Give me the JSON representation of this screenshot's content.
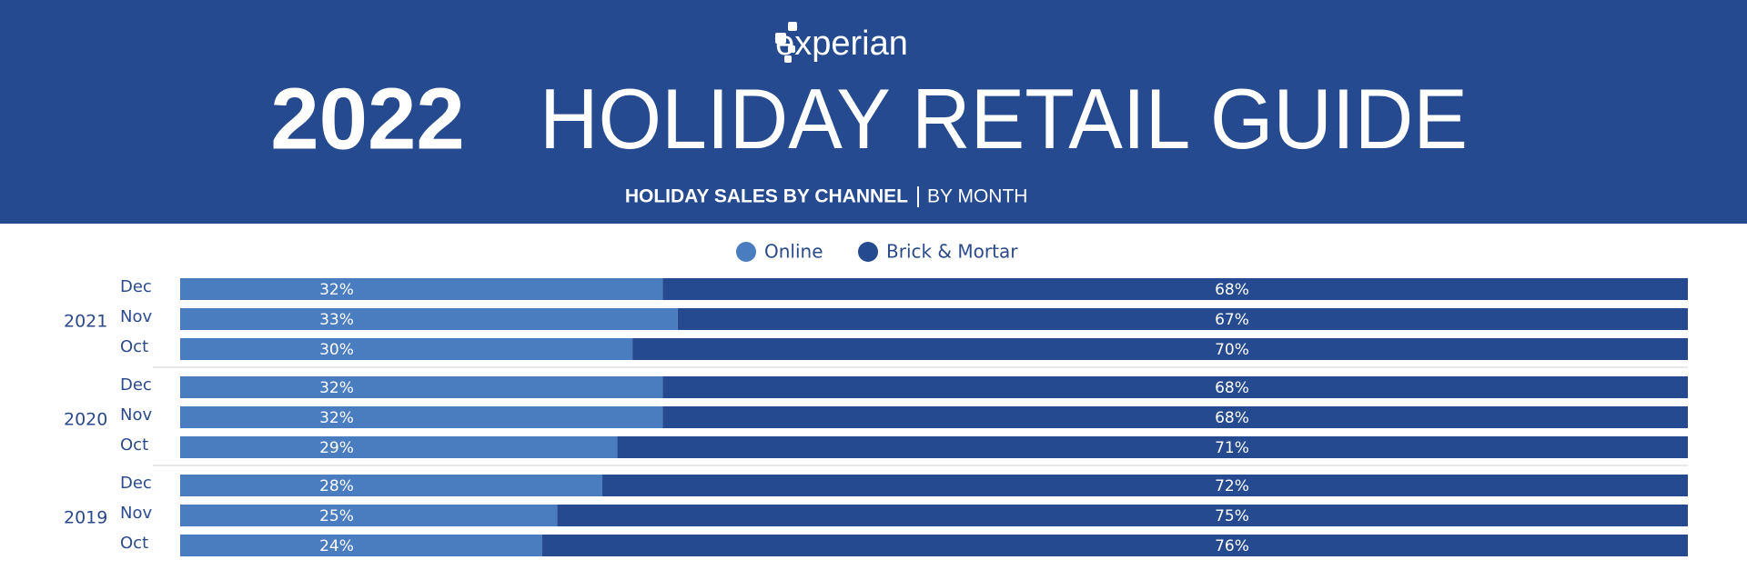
{
  "header": {
    "logo": "experian",
    "year": "2022",
    "title": "HOLIDAY RETAIL GUIDE",
    "subtitle": "HOLIDAY SALES BY CHANNEL",
    "subtitle_detail": "BY MONTH"
  },
  "chart_data": {
    "type": "bar",
    "orientation": "horizontal",
    "stacked": true,
    "groups": [
      {
        "name": "2021",
        "categories": [
          "Dec",
          "Nov",
          "Oct"
        ]
      },
      {
        "name": "2020",
        "categories": [
          "Dec",
          "Nov",
          "Oct"
        ]
      },
      {
        "name": "2019",
        "categories": [
          "Dec",
          "Nov",
          "Oct"
        ]
      }
    ],
    "xlim": [
      0,
      100
    ],
    "series": [
      {
        "name": "Online",
        "color": "#4a7cc0",
        "values": [
          32,
          33,
          30,
          32,
          32,
          29,
          28,
          25,
          24
        ],
        "value_labels": [
          "32%",
          "33%",
          "30%",
          "32%",
          "32%",
          "29%",
          "28%",
          "25%",
          "24%"
        ]
      },
      {
        "name": "Brick & Mortar",
        "color": "#264a8f",
        "values": [
          68,
          67,
          70,
          68,
          68,
          71,
          72,
          75,
          76
        ],
        "value_labels": [
          "68%",
          "67%",
          "70%",
          "68%",
          "68%",
          "71%",
          "72%",
          "75%",
          "76%"
        ]
      }
    ],
    "legend": "top"
  }
}
